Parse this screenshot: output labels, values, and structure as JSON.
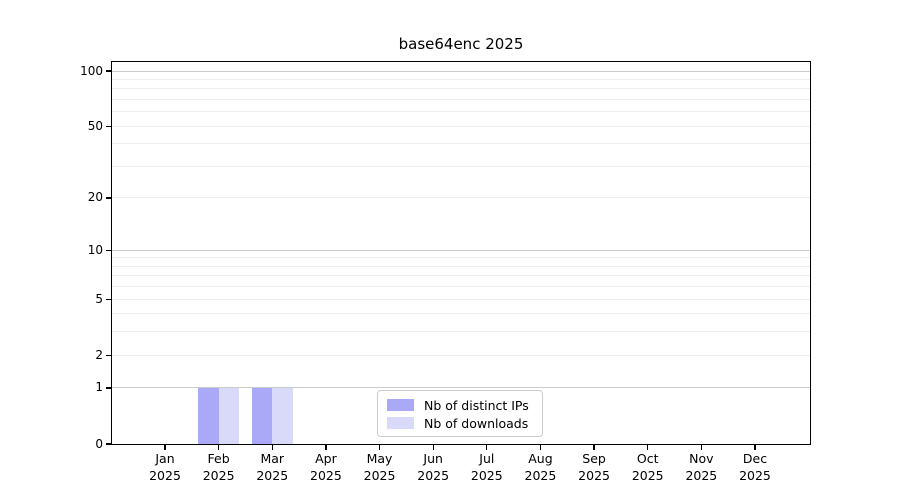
{
  "chart_data": {
    "type": "bar",
    "title": "base64enc 2025",
    "categories": [
      "Jan",
      "Feb",
      "Mar",
      "Apr",
      "May",
      "Jun",
      "Jul",
      "Aug",
      "Sep",
      "Oct",
      "Nov",
      "Dec"
    ],
    "xtick_year_line": "2025",
    "series": [
      {
        "name": "Nb of distinct IPs",
        "color": "#a9a9f8",
        "values": [
          0,
          1,
          1,
          0,
          0,
          0,
          0,
          0,
          0,
          0,
          0,
          0
        ]
      },
      {
        "name": "Nb of downloads",
        "color": "#d9d9fa",
        "values": [
          0,
          1,
          1,
          0,
          0,
          0,
          0,
          0,
          0,
          0,
          0,
          0
        ]
      }
    ],
    "yscale": "log1p",
    "ylim": [
      0,
      112
    ],
    "yticks": [
      0,
      1,
      2,
      5,
      10,
      20,
      50,
      100
    ],
    "gridlines": {
      "major": [
        1,
        10,
        100
      ],
      "minor": [
        2,
        3,
        4,
        5,
        6,
        7,
        8,
        9,
        20,
        30,
        40,
        50,
        60,
        70,
        80,
        90
      ],
      "major_color": "#cccccc",
      "minor_color": "#eeeeee"
    },
    "legend_position": "lower center",
    "xlabel": "",
    "ylabel": ""
  }
}
